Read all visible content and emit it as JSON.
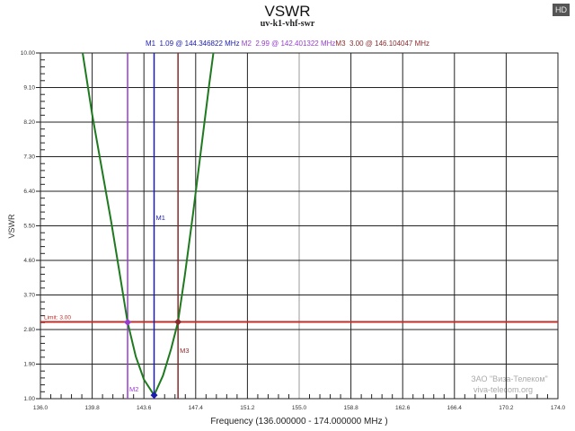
{
  "badge": "HD",
  "markers_text": [
    {
      "t": "M1  1.09 @ 144.346822 MHz",
      "c": "#1b1bb0"
    },
    {
      "t": " M2  2.99 @ 142.401322 MHz",
      "c": "#9a3bd0"
    },
    {
      "t": "M3  3.00 @ 146.104047 MHz",
      "c": "#8b2a2a"
    }
  ],
  "watermark": {
    "line1": "ЗАО \"Виза-Телеком\"",
    "line2": "viva-telecom.org"
  },
  "chart_data": {
    "type": "line",
    "title": "VSWR",
    "subtitle": "uv-k1-vhf-swr",
    "xlabel": "Frequency (136.000000 - 174.000000 MHz )",
    "ylabel": "VSWR",
    "xlim": [
      136,
      174
    ],
    "ylim": [
      1,
      10
    ],
    "grid": true,
    "xticks": [
      "136.0",
      "139.8",
      "143.6",
      "147.4",
      "151.2",
      "155.0",
      "158.8",
      "162.6",
      "166.4",
      "170.2",
      "174.0"
    ],
    "yticks": [
      "1.00",
      "1.90",
      "2.80",
      "3.70",
      "4.60",
      "5.50",
      "6.40",
      "7.30",
      "8.20",
      "9.10",
      "10.00"
    ],
    "series": [
      {
        "color": "#1e7a1e",
        "x": [
          139.1,
          139.8,
          140.5,
          141.2,
          141.8,
          142.4,
          143.0,
          143.6,
          144.35,
          145.0,
          145.6,
          146.1,
          146.6,
          147.2,
          147.8,
          148.4,
          148.7
        ],
        "y": [
          10.0,
          8.4,
          7.0,
          5.6,
          4.3,
          2.99,
          2.1,
          1.5,
          1.09,
          1.6,
          2.3,
          3.0,
          4.2,
          5.8,
          7.5,
          9.2,
          10.0
        ]
      }
    ],
    "limit": {
      "label": "Limit: 3.00",
      "value": 3.0,
      "color": "#c0302a"
    },
    "markers": [
      {
        "label": "M1",
        "x": 144.346822,
        "y": 1.09,
        "color": "#1b1bb0"
      },
      {
        "label": "M2",
        "x": 142.401322,
        "y": 2.99,
        "color": "#9a3bd0"
      },
      {
        "label": "M3",
        "x": 146.104047,
        "y": 3.0,
        "color": "#8b2a2a"
      }
    ]
  }
}
